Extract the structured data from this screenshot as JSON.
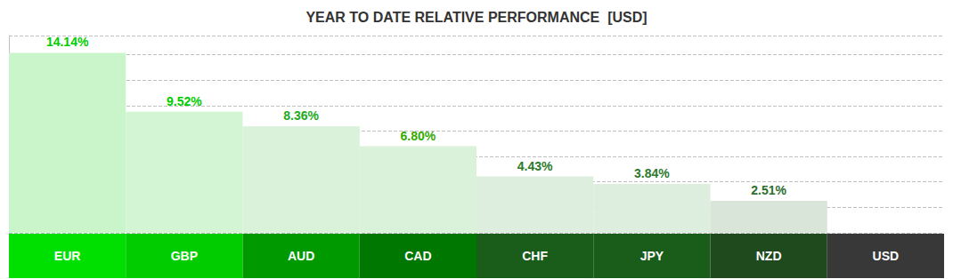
{
  "chart_data": {
    "type": "bar",
    "title": "YEAR TO DATE RELATIVE PERFORMANCE  [USD]",
    "categories": [
      "EUR",
      "GBP",
      "AUD",
      "CAD",
      "CHF",
      "JPY",
      "NZD",
      "USD"
    ],
    "values": [
      14.14,
      9.52,
      8.36,
      6.8,
      4.43,
      3.84,
      2.51,
      0
    ],
    "value_labels": [
      "14.14%",
      "9.52%",
      "8.36%",
      "6.80%",
      "4.43%",
      "3.84%",
      "2.51%",
      null
    ],
    "colors": [
      "#caf5ca",
      "#d4f5d4",
      "#d9f2d9",
      "#d9f2d9",
      "#deeede",
      "#deeede",
      "#d8e5d8",
      "#ffffff"
    ],
    "ylim": [
      0,
      15.5
    ],
    "yticks": [
      0,
      2,
      4,
      6,
      8,
      10,
      12,
      14
    ],
    "grid": true,
    "data_labels": true,
    "tick_labels": "x"
  }
}
